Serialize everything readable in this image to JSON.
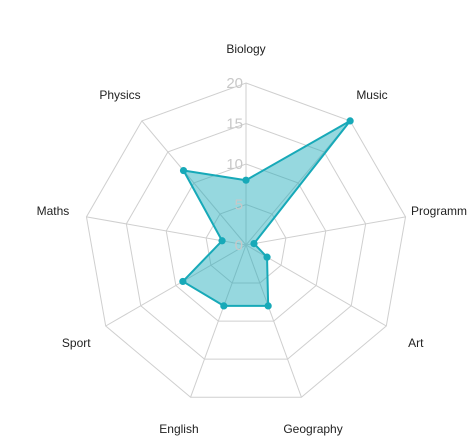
{
  "chart_data": {
    "type": "radar",
    "title": "",
    "categories": [
      "Biology",
      "Music",
      "Programm",
      "Art",
      "Geography",
      "English",
      "Sport",
      "Maths",
      "Physics"
    ],
    "series": [
      {
        "values": [
          8,
          20,
          1,
          3,
          8,
          8,
          9,
          3,
          12
        ]
      }
    ],
    "rlim": [
      0,
      20
    ],
    "ticks": [
      "0",
      "5",
      "10",
      "15",
      "20"
    ],
    "grid": true,
    "legend": "none",
    "colors": {
      "line": "#17a9b8",
      "fill": "#17a9b8",
      "fill_opacity": 0.45,
      "grid": "#cfcfcf",
      "tick": "#c8c8c8"
    }
  }
}
